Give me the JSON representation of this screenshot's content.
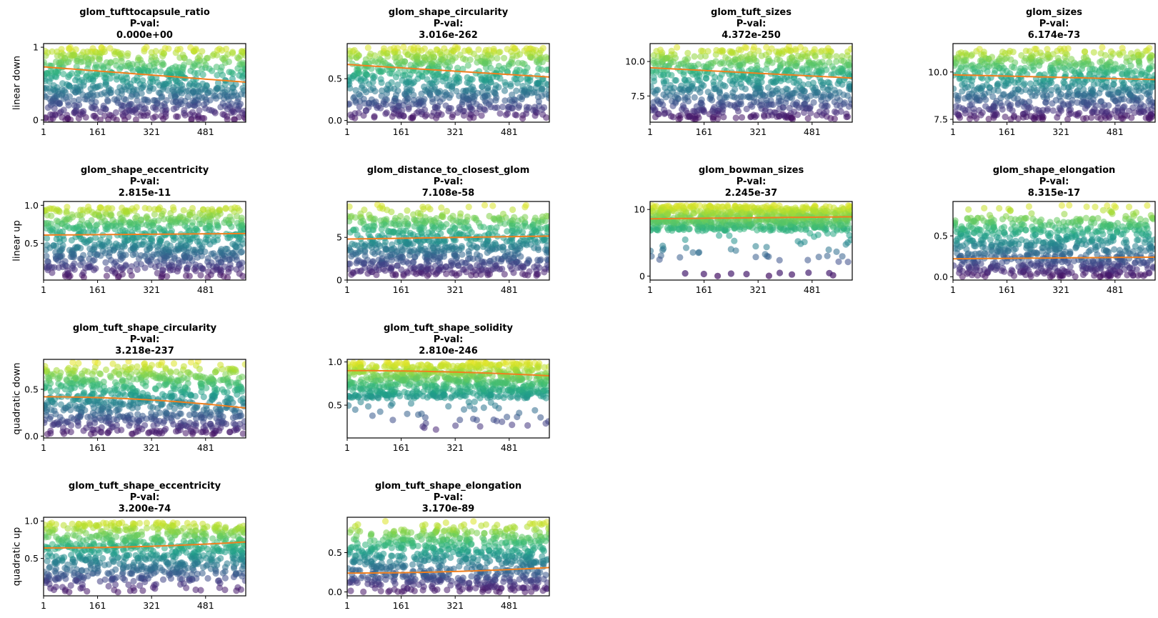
{
  "figure": {
    "row_labels": [
      "linear down",
      "linear up",
      "quadratic down",
      "quadratic up"
    ],
    "pval_label": "P-val:",
    "trend_color": "#f07f1e",
    "point_colormap": "viridis",
    "point_alpha": 0.55
  },
  "chart_data": [
    {
      "type": "scatter",
      "row": 0,
      "col": 0,
      "title": "glom_tufttocapsule_ratio",
      "pval": "0.000e+00",
      "xticks": [
        "1",
        "161",
        "321",
        "481"
      ],
      "xlim": [
        1,
        600
      ],
      "yticks": [
        "0",
        "1"
      ],
      "ytick_values": [
        0,
        1
      ],
      "ylim": [
        -0.03,
        1.05
      ],
      "cloud": {
        "lo": 0.0,
        "hi": 0.95,
        "sparse_low": [],
        "sparse_high": [
          0.93,
          1.0
        ]
      },
      "trend": {
        "shape": "linear",
        "start": 0.73,
        "end": 0.52
      }
    },
    {
      "type": "scatter",
      "row": 0,
      "col": 1,
      "title": "glom_shape_circularity",
      "pval": "3.016e-262",
      "xticks": [
        "1",
        "161",
        "321",
        "481"
      ],
      "xlim": [
        1,
        600
      ],
      "yticks": [
        "0.0",
        "0.5"
      ],
      "ytick_values": [
        0,
        0.5
      ],
      "ylim": [
        -0.02,
        0.92
      ],
      "cloud": {
        "lo": 0.02,
        "hi": 0.88,
        "sparse_low": [],
        "sparse_high": []
      },
      "trend": {
        "shape": "linear",
        "start": 0.67,
        "end": 0.52
      }
    },
    {
      "type": "scatter",
      "row": 0,
      "col": 2,
      "title": "glom_tuft_sizes",
      "pval": "4.372e-250",
      "xticks": [
        "1",
        "161",
        "321",
        "481"
      ],
      "xlim": [
        1,
        600
      ],
      "yticks": [
        "7.5",
        "10.0"
      ],
      "ytick_values": [
        7.5,
        10.0
      ],
      "ylim": [
        5.6,
        11.3
      ],
      "cloud": {
        "lo": 5.8,
        "hi": 10.8,
        "sparse_low": [],
        "sparse_high": [
          10.7,
          11.1
        ]
      },
      "trend": {
        "shape": "linear",
        "start": 9.55,
        "end": 8.8
      }
    },
    {
      "type": "scatter",
      "row": 0,
      "col": 3,
      "title": "glom_sizes",
      "pval": "6.174e-73",
      "xticks": [
        "1",
        "161",
        "321",
        "481"
      ],
      "xlim": [
        1,
        600
      ],
      "yticks": [
        "7.5",
        "10.0"
      ],
      "ytick_values": [
        7.5,
        10.0
      ],
      "ylim": [
        7.35,
        11.5
      ],
      "cloud": {
        "lo": 7.5,
        "hi": 11.0,
        "sparse_low": [],
        "sparse_high": [
          11.0,
          11.3
        ]
      },
      "trend": {
        "shape": "linear",
        "start": 9.85,
        "end": 9.6
      }
    },
    {
      "type": "scatter",
      "row": 1,
      "col": 0,
      "title": "glom_shape_eccentricity",
      "pval": "2.815e-11",
      "xticks": [
        "1",
        "161",
        "321",
        "481"
      ],
      "xlim": [
        1,
        600
      ],
      "yticks": [
        "0.5",
        "1.0"
      ],
      "ytick_values": [
        0.5,
        1.0
      ],
      "ylim": [
        0.02,
        1.05
      ],
      "cloud": {
        "lo": 0.15,
        "hi": 0.98,
        "sparse_low": [
          0.05,
          0.15
        ],
        "sparse_high": []
      },
      "trend": {
        "shape": "linear",
        "start": 0.61,
        "end": 0.63
      }
    },
    {
      "type": "scatter",
      "row": 1,
      "col": 1,
      "title": "glom_distance_to_closest_glom",
      "pval": "7.108e-58",
      "xticks": [
        "1",
        "161",
        "321",
        "481"
      ],
      "xlim": [
        1,
        600
      ],
      "yticks": [
        "0",
        "5"
      ],
      "ytick_values": [
        0,
        5
      ],
      "ylim": [
        0,
        9.2
      ],
      "cloud": {
        "lo": 0.5,
        "hi": 7.5,
        "sparse_low": [],
        "sparse_high": [
          7.5,
          8.9
        ]
      },
      "trend": {
        "shape": "linear",
        "start": 4.8,
        "end": 5.15
      }
    },
    {
      "type": "scatter",
      "row": 1,
      "col": 2,
      "title": "glom_bowman_sizes",
      "pval": "2.245e-37",
      "xticks": [
        "1",
        "161",
        "321",
        "481"
      ],
      "xlim": [
        1,
        600
      ],
      "yticks": [
        "0",
        "10"
      ],
      "ytick_values": [
        0,
        10
      ],
      "ylim": [
        -0.6,
        11.2
      ],
      "cloud": {
        "lo": 6.8,
        "hi": 10.6,
        "sparse_low": [
          2.0,
          6.5
        ],
        "sparse_high": [],
        "outliers_zero": true
      },
      "trend": {
        "shape": "linear",
        "start": 8.6,
        "end": 8.9
      }
    },
    {
      "type": "scatter",
      "row": 1,
      "col": 3,
      "title": "glom_shape_elongation",
      "pval": "8.315e-17",
      "xticks": [
        "1",
        "161",
        "321",
        "481"
      ],
      "xlim": [
        1,
        600
      ],
      "yticks": [
        "0.0",
        "0.5"
      ],
      "ytick_values": [
        0,
        0.5
      ],
      "ylim": [
        -0.04,
        0.92
      ],
      "cloud": {
        "lo": 0.0,
        "hi": 0.72,
        "sparse_low": [],
        "sparse_high": [
          0.72,
          0.88
        ]
      },
      "trend": {
        "shape": "linear",
        "start": 0.22,
        "end": 0.24
      }
    },
    {
      "type": "scatter",
      "row": 2,
      "col": 0,
      "title": "glom_tuft_shape_circularity",
      "pval": "3.218e-237",
      "xticks": [
        "1",
        "161",
        "321",
        "481"
      ],
      "xlim": [
        1,
        600
      ],
      "yticks": [
        "0.0",
        "0.5"
      ],
      "ytick_values": [
        0,
        0.5
      ],
      "ylim": [
        -0.02,
        0.82
      ],
      "cloud": {
        "lo": 0.02,
        "hi": 0.72,
        "sparse_low": [],
        "sparse_high": [
          0.72,
          0.8
        ]
      },
      "trend": {
        "shape": "quadratic",
        "start": 0.42,
        "end": 0.3
      }
    },
    {
      "type": "scatter",
      "row": 2,
      "col": 1,
      "title": "glom_tuft_shape_solidity",
      "pval": "2.810e-246",
      "xticks": [
        "1",
        "161",
        "321",
        "481"
      ],
      "xlim": [
        1,
        600
      ],
      "yticks": [
        "0.5",
        "1.0"
      ],
      "ytick_values": [
        0.5,
        1.0
      ],
      "ylim": [
        0.12,
        1.03
      ],
      "cloud": {
        "lo": 0.58,
        "hi": 1.0,
        "sparse_low": [
          0.2,
          0.55
        ],
        "sparse_high": []
      },
      "trend": {
        "shape": "quadratic",
        "start": 0.9,
        "end": 0.84
      }
    },
    {
      "type": "scatter",
      "row": 3,
      "col": 0,
      "title": "glom_tuft_shape_eccentricity",
      "pval": "3.200e-74",
      "xticks": [
        "1",
        "161",
        "321",
        "481"
      ],
      "xlim": [
        1,
        600
      ],
      "yticks": [
        "0.5",
        "1.0"
      ],
      "ytick_values": [
        0.5,
        1.0
      ],
      "ylim": [
        0.0,
        1.05
      ],
      "cloud": {
        "lo": 0.2,
        "hi": 0.98,
        "sparse_low": [
          0.05,
          0.2
        ],
        "sparse_high": []
      },
      "trend": {
        "shape": "quadratic",
        "start": 0.64,
        "end": 0.72
      }
    },
    {
      "type": "scatter",
      "row": 3,
      "col": 1,
      "title": "glom_tuft_shape_elongation",
      "pval": "3.170e-89",
      "xticks": [
        "1",
        "161",
        "321",
        "481"
      ],
      "xlim": [
        1,
        600
      ],
      "yticks": [
        "0.0",
        "0.5"
      ],
      "ytick_values": [
        0,
        0.5
      ],
      "ylim": [
        -0.05,
        0.95
      ],
      "cloud": {
        "lo": 0.0,
        "hi": 0.8,
        "sparse_low": [],
        "sparse_high": [
          0.8,
          0.9
        ]
      },
      "trend": {
        "shape": "quadratic",
        "start": 0.24,
        "end": 0.31
      }
    }
  ]
}
